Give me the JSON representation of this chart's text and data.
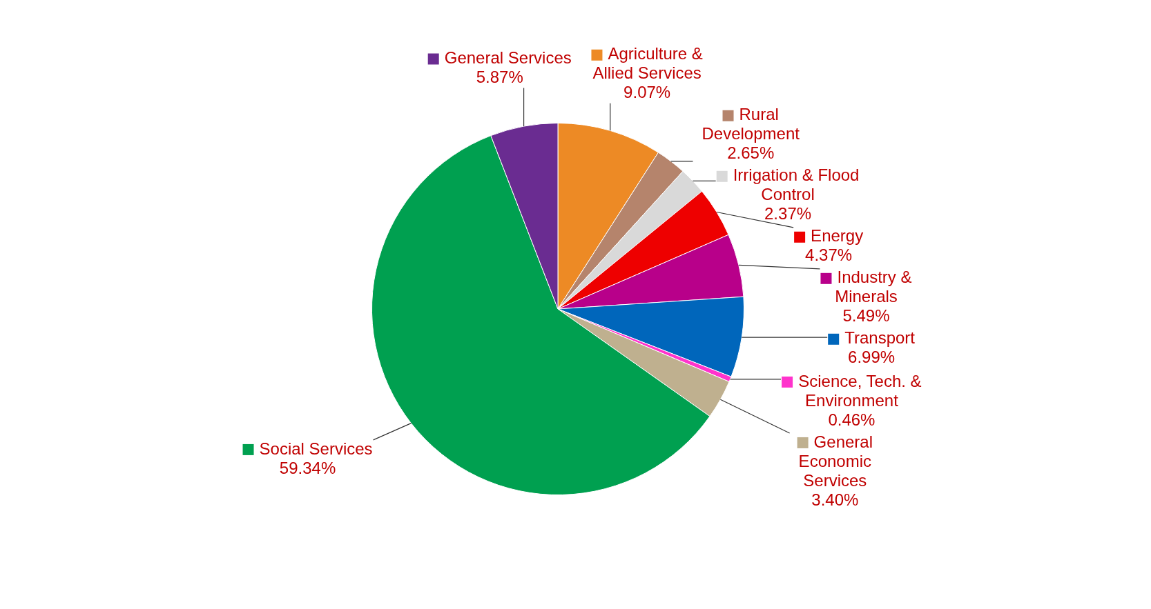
{
  "chart_data": {
    "type": "pie",
    "categories": [
      "Agriculture & Allied Services",
      "Rural Development",
      "Irrigation & Flood Control",
      "Energy",
      "Industry & Minerals",
      "Transport",
      "Science, Tech. & Environment",
      "General Economic Services",
      "Social Services",
      "General Services"
    ],
    "values": [
      9.07,
      2.65,
      2.37,
      4.37,
      5.49,
      6.99,
      0.46,
      3.4,
      59.34,
      5.87
    ],
    "value_labels": [
      "9.07%",
      "2.65%",
      "2.37%",
      "4.37%",
      "5.49%",
      "6.99%",
      "0.46%",
      "3.40%",
      "59.34%",
      "5.87%"
    ],
    "legend": "right",
    "colors": [
      "#ed8a25",
      "#b5846c",
      "#d9d9d9",
      "#ee0000",
      "#b8008a",
      "#0066bb",
      "#ff33cc",
      "#bfb08f",
      "#00a050",
      "#6a2c91"
    ]
  }
}
